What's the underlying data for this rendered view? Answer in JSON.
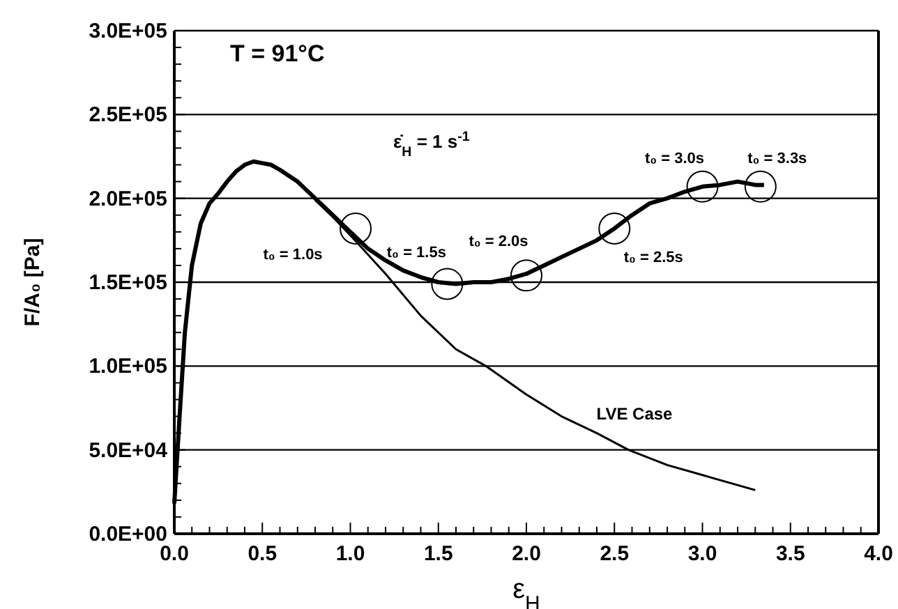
{
  "chart_data": {
    "type": "line",
    "xlabel": "ε$_{H}$",
    "ylabel": "F/A₀ [Pa]",
    "xlim": [
      0,
      4
    ],
    "ylim": [
      0,
      300000
    ],
    "xticks": [
      {
        "value": 0,
        "label": "0.0"
      },
      {
        "value": 0.1,
        "label": null
      },
      {
        "value": 0.2,
        "label": null
      },
      {
        "value": 0.3,
        "label": null
      },
      {
        "value": 0.4,
        "label": null
      },
      {
        "value": 0.5,
        "label": "0.5"
      },
      {
        "value": 0.6,
        "label": null
      },
      {
        "value": 0.7,
        "label": null
      },
      {
        "value": 0.8,
        "label": null
      },
      {
        "value": 0.9,
        "label": null
      },
      {
        "value": 1,
        "label": "1.0"
      },
      {
        "value": 1.1,
        "label": null
      },
      {
        "value": 1.2,
        "label": null
      },
      {
        "value": 1.3,
        "label": null
      },
      {
        "value": 1.4,
        "label": null
      },
      {
        "value": 1.5,
        "label": "1.5"
      },
      {
        "value": 1.6,
        "label": null
      },
      {
        "value": 1.7,
        "label": null
      },
      {
        "value": 1.8,
        "label": null
      },
      {
        "value": 1.9,
        "label": null
      },
      {
        "value": 2,
        "label": "2.0"
      },
      {
        "value": 2.1,
        "label": null
      },
      {
        "value": 2.2,
        "label": null
      },
      {
        "value": 2.3,
        "label": null
      },
      {
        "value": 2.4,
        "label": null
      },
      {
        "value": 2.5,
        "label": "2.5"
      },
      {
        "value": 2.6,
        "label": null
      },
      {
        "value": 2.7,
        "label": null
      },
      {
        "value": 2.8,
        "label": null
      },
      {
        "value": 2.9,
        "label": null
      },
      {
        "value": 3,
        "label": "3.0"
      },
      {
        "value": 3.1,
        "label": null
      },
      {
        "value": 3.2,
        "label": null
      },
      {
        "value": 3.3,
        "label": null
      },
      {
        "value": 3.4,
        "label": null
      },
      {
        "value": 3.5,
        "label": "3.5"
      },
      {
        "value": 3.6,
        "label": null
      },
      {
        "value": 3.7,
        "label": null
      },
      {
        "value": 3.8,
        "label": null
      },
      {
        "value": 3.9,
        "label": null
      },
      {
        "value": 4,
        "label": "4.0"
      }
    ],
    "yticks": [
      {
        "value": 0,
        "label": "0.0E+00"
      },
      {
        "value": 10000,
        "label": null
      },
      {
        "value": 20000,
        "label": null
      },
      {
        "value": 30000,
        "label": null
      },
      {
        "value": 40000,
        "label": null
      },
      {
        "value": 50000,
        "label": "5.0E+04"
      },
      {
        "value": 60000,
        "label": null
      },
      {
        "value": 70000,
        "label": null
      },
      {
        "value": 80000,
        "label": null
      },
      {
        "value": 90000,
        "label": null
      },
      {
        "value": 100000,
        "label": "1.0E+05"
      },
      {
        "value": 110000,
        "label": null
      },
      {
        "value": 120000,
        "label": null
      },
      {
        "value": 130000,
        "label": null
      },
      {
        "value": 140000,
        "label": null
      },
      {
        "value": 150000,
        "label": "1.5E+05"
      },
      {
        "value": 160000,
        "label": null
      },
      {
        "value": 170000,
        "label": null
      },
      {
        "value": 180000,
        "label": null
      },
      {
        "value": 190000,
        "label": null
      },
      {
        "value": 200000,
        "label": "2.0E+05"
      },
      {
        "value": 210000,
        "label": null
      },
      {
        "value": 220000,
        "label": null
      },
      {
        "value": 230000,
        "label": null
      },
      {
        "value": 240000,
        "label": null
      },
      {
        "value": 250000,
        "label": "2.5E+05"
      },
      {
        "value": 260000,
        "label": null
      },
      {
        "value": 270000,
        "label": null
      },
      {
        "value": 280000,
        "label": null
      },
      {
        "value": 290000,
        "label": null
      },
      {
        "value": 300000,
        "label": "3.0E+05"
      }
    ],
    "grid": "y",
    "marker": "none",
    "series": [
      {
        "color": "#000000",
        "x": [
          0,
          0.03,
          0.06,
          0.1,
          0.15,
          0.2,
          0.25,
          0.3,
          0.35,
          0.4,
          0.45,
          0.5,
          0.55,
          0.6,
          0.7,
          0.8,
          0.9,
          1.0,
          1.1,
          1.2,
          1.3,
          1.4,
          1.5,
          1.6,
          1.7,
          1.8,
          1.9,
          2.0,
          2.1,
          2.2,
          2.3,
          2.4,
          2.5,
          2.6,
          2.7,
          2.8,
          2.9,
          3.0,
          3.1,
          3.2,
          3.3,
          3.35
        ],
        "values": [
          18000,
          70000,
          120000,
          160000,
          185000,
          197000,
          203000,
          210000,
          216000,
          220000,
          222000,
          221000,
          220000,
          217000,
          210000,
          200000,
          190000,
          180000,
          170000,
          163000,
          157000,
          153000,
          150000,
          149000,
          150000,
          150000,
          152000,
          155000,
          160000,
          165000,
          170000,
          175000,
          182000,
          190000,
          197000,
          200000,
          204000,
          207000,
          208000,
          210000,
          208000,
          208000
        ]
      },
      {
        "name": "LVE Case",
        "color": "#000000",
        "x": [
          0.8,
          0.9,
          1.0,
          1.2,
          1.4,
          1.6,
          1.77,
          2.0,
          2.2,
          2.4,
          2.58,
          2.8,
          3.0,
          3.3
        ],
        "values": [
          199000,
          189000,
          178000,
          155000,
          130000,
          110000,
          100000,
          83000,
          70000,
          60000,
          50000,
          41000,
          35000,
          26000
        ]
      }
    ],
    "annotations": [
      "T = 91°C",
      "ε̇$_{H}$ = 1 s$^{-1}$",
      {
        "text": "t₀ = 1.0s",
        "x": 1.03,
        "y": 182000
      },
      {
        "text": "t₀ = 1.5s",
        "x": 1.55,
        "y": 149000
      },
      {
        "text": "t₀ = 2.0s",
        "x": 2.0,
        "y": 154000
      },
      {
        "text": "t₀ = 2.5s",
        "x": 2.5,
        "y": 182000
      },
      {
        "text": "t₀ = 3.0s",
        "x": 3.0,
        "y": 207000
      },
      {
        "text": "t₀ = 3.3s",
        "x": 3.33,
        "y": 207000
      }
    ]
  }
}
